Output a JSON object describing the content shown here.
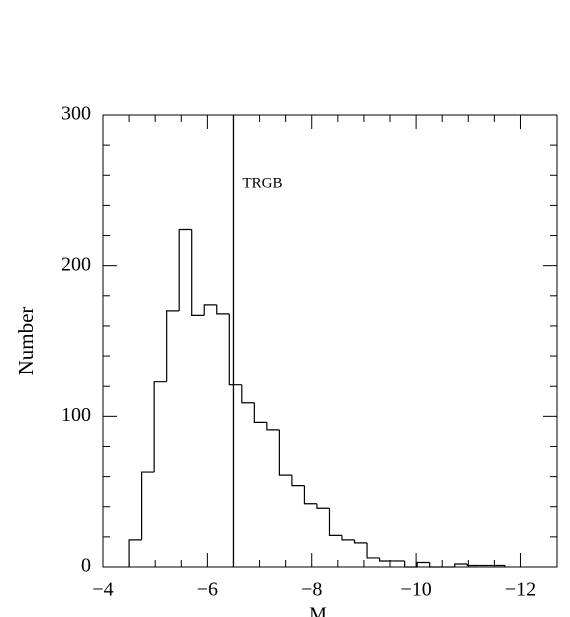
{
  "chart_data": {
    "type": "histogram",
    "y_label": "Number",
    "x_label": "M",
    "bins": [
      -4.5,
      -4.74,
      -4.98,
      -5.22,
      -5.46,
      -5.7,
      -5.94,
      -6.18,
      -6.42,
      -6.66,
      -6.9,
      -7.14,
      -7.38,
      -7.62,
      -7.86,
      -8.1,
      -8.34,
      -8.58,
      -8.82,
      -9.06,
      -9.3,
      -9.54,
      -9.78,
      -10.02,
      -10.26,
      -10.5,
      -10.74,
      -10.98,
      -11.22,
      -11.46,
      -11.7
    ],
    "values": [
      18,
      63,
      123,
      170,
      224,
      167,
      174,
      168,
      121,
      109,
      96,
      91,
      61,
      54,
      42,
      39,
      21,
      18,
      16,
      6,
      4,
      4,
      0,
      3,
      0,
      0,
      2,
      1,
      1,
      1
    ],
    "color": "#000000",
    "xlim": [
      -4,
      -12.7
    ],
    "ylim": [
      0,
      300
    ],
    "xticks": [
      {
        "value": -4,
        "label": "−4"
      },
      {
        "value": -6,
        "label": "−6"
      },
      {
        "value": -8,
        "label": "−8"
      },
      {
        "value": -10,
        "label": "−10"
      },
      {
        "value": -12,
        "label": "−12"
      }
    ],
    "yticks": [
      0,
      100,
      200,
      300
    ],
    "vline": {
      "x": -6.5,
      "label": "TRGB"
    }
  }
}
